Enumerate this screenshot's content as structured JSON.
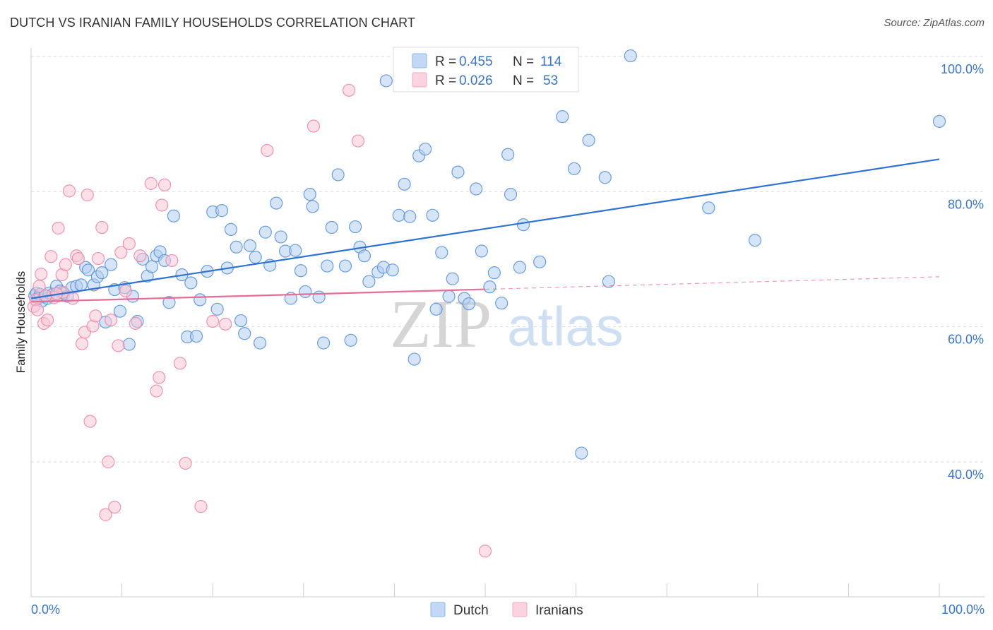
{
  "header": {
    "title": "DUTCH VS IRANIAN FAMILY HOUSEHOLDS CORRELATION CHART",
    "source": "Source: ZipAtlas.com"
  },
  "watermark": {
    "zip": "ZIP",
    "atlas": "atlas"
  },
  "legend_box": {
    "rows": [
      {
        "r_label": "R = ",
        "r_value": "0.455",
        "n_label": "N = ",
        "n_value": "114",
        "color": "#8cb4e8"
      },
      {
        "r_label": "R = ",
        "r_value": "0.026",
        "n_label": "N = ",
        "n_value": "53",
        "color": "#f4a8c0"
      }
    ]
  },
  "chart_data": {
    "type": "scatter",
    "title": "DUTCH VS IRANIAN FAMILY HOUSEHOLDS CORRELATION CHART",
    "xlabel": "",
    "ylabel": "Family Households",
    "xlim": [
      0,
      100
    ],
    "ylim": [
      20,
      104
    ],
    "x_tick_labels": [
      "0.0%",
      "100.0%"
    ],
    "y_ticks": [
      {
        "value": 100,
        "label": "100.0%"
      },
      {
        "value": 80,
        "label": "80.0%"
      },
      {
        "value": 60,
        "label": "60.0%"
      },
      {
        "value": 40,
        "label": "40.0%"
      }
    ],
    "grid": "horizontal dashed",
    "legend_position": "bottom-center",
    "series": [
      {
        "name": "Dutch",
        "color": "#5b93d8",
        "fill": "#b4cef0",
        "r": 0.455,
        "n": 114,
        "trend": {
          "x1": 0,
          "y1": 64.2,
          "x2": 100,
          "y2": 84.8,
          "solid_to": 100
        },
        "points": [
          [
            0.4,
            64.6
          ],
          [
            0.6,
            65.0
          ],
          [
            0.8,
            64.2
          ],
          [
            1.0,
            64.8
          ],
          [
            1.2,
            63.8
          ],
          [
            1.5,
            64.5
          ],
          [
            1.8,
            64.2
          ],
          [
            2.0,
            65.0
          ],
          [
            2.4,
            64.8
          ],
          [
            2.8,
            66.0
          ],
          [
            3.2,
            65.3
          ],
          [
            3.6,
            64.9
          ],
          [
            4.0,
            64.5
          ],
          [
            4.5,
            65.8
          ],
          [
            5.0,
            66.0
          ],
          [
            5.5,
            66.2
          ],
          [
            6.0,
            68.8
          ],
          [
            6.3,
            68.4
          ],
          [
            6.9,
            66.2
          ],
          [
            7.3,
            67.4
          ],
          [
            7.8,
            68.0
          ],
          [
            8.2,
            60.7
          ],
          [
            8.8,
            69.2
          ],
          [
            9.2,
            65.5
          ],
          [
            9.8,
            62.3
          ],
          [
            10.3,
            65.8
          ],
          [
            10.8,
            57.4
          ],
          [
            11.2,
            64.5
          ],
          [
            11.7,
            60.8
          ],
          [
            12.3,
            70.0
          ],
          [
            12.8,
            67.5
          ],
          [
            13.3,
            68.9
          ],
          [
            13.8,
            70.5
          ],
          [
            14.2,
            71.1
          ],
          [
            14.7,
            69.8
          ],
          [
            15.2,
            63.6
          ],
          [
            15.7,
            76.4
          ],
          [
            16.6,
            67.7
          ],
          [
            17.2,
            58.5
          ],
          [
            17.6,
            66.5
          ],
          [
            18.2,
            58.6
          ],
          [
            18.6,
            64.0
          ],
          [
            19.4,
            68.2
          ],
          [
            20.0,
            77.0
          ],
          [
            20.5,
            62.6
          ],
          [
            21.0,
            77.2
          ],
          [
            21.6,
            68.7
          ],
          [
            22.0,
            74.4
          ],
          [
            22.6,
            71.8
          ],
          [
            23.1,
            60.9
          ],
          [
            23.5,
            59.0
          ],
          [
            24.1,
            72.0
          ],
          [
            24.7,
            70.3
          ],
          [
            25.2,
            57.6
          ],
          [
            25.8,
            74.0
          ],
          [
            26.3,
            69.1
          ],
          [
            27.0,
            78.3
          ],
          [
            27.5,
            73.3
          ],
          [
            28.0,
            71.2
          ],
          [
            28.6,
            64.2
          ],
          [
            29.1,
            71.3
          ],
          [
            29.7,
            68.3
          ],
          [
            30.2,
            65.2
          ],
          [
            30.7,
            79.6
          ],
          [
            31.0,
            77.8
          ],
          [
            31.7,
            64.4
          ],
          [
            32.2,
            57.6
          ],
          [
            32.6,
            69.0
          ],
          [
            33.1,
            74.7
          ],
          [
            33.8,
            82.5
          ],
          [
            34.6,
            69.0
          ],
          [
            35.2,
            58.0
          ],
          [
            35.7,
            74.8
          ],
          [
            36.2,
            71.8
          ],
          [
            36.7,
            70.5
          ],
          [
            37.2,
            66.7
          ],
          [
            38.2,
            68.1
          ],
          [
            38.8,
            68.8
          ],
          [
            39.1,
            96.4
          ],
          [
            39.8,
            68.4
          ],
          [
            40.5,
            76.5
          ],
          [
            41.1,
            81.1
          ],
          [
            41.7,
            76.3
          ],
          [
            42.2,
            55.2
          ],
          [
            42.7,
            85.3
          ],
          [
            43.4,
            86.3
          ],
          [
            44.2,
            76.5
          ],
          [
            44.6,
            62.6
          ],
          [
            45.2,
            71.0
          ],
          [
            46.0,
            64.5
          ],
          [
            46.4,
            67.1
          ],
          [
            47.0,
            82.9
          ],
          [
            47.7,
            64.2
          ],
          [
            48.2,
            63.4
          ],
          [
            49.0,
            80.4
          ],
          [
            49.6,
            71.2
          ],
          [
            50.5,
            65.9
          ],
          [
            51.0,
            68.0
          ],
          [
            51.8,
            63.5
          ],
          [
            52.5,
            85.5
          ],
          [
            52.8,
            79.6
          ],
          [
            53.8,
            68.8
          ],
          [
            54.2,
            75.1
          ],
          [
            56.0,
            69.6
          ],
          [
            58.5,
            91.1
          ],
          [
            59.8,
            83.4
          ],
          [
            60.6,
            41.3
          ],
          [
            61.4,
            87.6
          ],
          [
            63.2,
            82.1
          ],
          [
            63.6,
            66.7
          ],
          [
            66.0,
            100.1
          ],
          [
            74.6,
            77.6
          ],
          [
            79.7,
            72.8
          ],
          [
            100.0,
            90.4
          ]
        ]
      },
      {
        "name": "Iranians",
        "color": "#ec8aab",
        "fill": "#f8c6d6",
        "r": 0.026,
        "n": 53,
        "trend": {
          "x1": 0,
          "y1": 63.7,
          "x2": 100,
          "y2": 67.4,
          "solid_to": 50
        },
        "points": [
          [
            0.3,
            63.0
          ],
          [
            0.5,
            64.0
          ],
          [
            0.7,
            62.5
          ],
          [
            0.9,
            66.0
          ],
          [
            1.1,
            67.8
          ],
          [
            1.4,
            60.5
          ],
          [
            1.8,
            61.0
          ],
          [
            2.2,
            70.4
          ],
          [
            2.5,
            64.3
          ],
          [
            3.0,
            74.6
          ],
          [
            3.4,
            67.7
          ],
          [
            3.8,
            69.2
          ],
          [
            4.2,
            80.1
          ],
          [
            4.6,
            64.2
          ],
          [
            5.0,
            70.5
          ],
          [
            5.2,
            70.1
          ],
          [
            5.6,
            57.5
          ],
          [
            5.9,
            59.2
          ],
          [
            6.2,
            79.5
          ],
          [
            6.5,
            46.0
          ],
          [
            6.8,
            60.1
          ],
          [
            7.1,
            61.6
          ],
          [
            7.4,
            70.1
          ],
          [
            7.8,
            74.7
          ],
          [
            8.2,
            32.2
          ],
          [
            8.5,
            40.0
          ],
          [
            8.8,
            61.0
          ],
          [
            9.2,
            33.3
          ],
          [
            9.6,
            57.2
          ],
          [
            9.9,
            71.0
          ],
          [
            10.4,
            65.3
          ],
          [
            10.8,
            72.3
          ],
          [
            11.5,
            60.5
          ],
          [
            12.0,
            70.5
          ],
          [
            13.2,
            81.2
          ],
          [
            13.8,
            50.5
          ],
          [
            14.1,
            52.5
          ],
          [
            14.4,
            78.0
          ],
          [
            14.7,
            81.0
          ],
          [
            15.5,
            69.8
          ],
          [
            16.4,
            54.6
          ],
          [
            17.0,
            39.8
          ],
          [
            18.7,
            33.4
          ],
          [
            20.0,
            60.8
          ],
          [
            21.4,
            60.4
          ],
          [
            26.0,
            86.1
          ],
          [
            31.1,
            89.7
          ],
          [
            35.0,
            95.0
          ],
          [
            36.0,
            87.5
          ],
          [
            50.0,
            26.8
          ],
          [
            3.5,
            65.1
          ],
          [
            1.6,
            64.6
          ],
          [
            2.8,
            64.9
          ]
        ]
      }
    ]
  },
  "bottom_legend": {
    "items": [
      {
        "label": "Dutch",
        "color": "#8cb4e8"
      },
      {
        "label": "Iranians",
        "color": "#f4a8c0"
      }
    ]
  }
}
